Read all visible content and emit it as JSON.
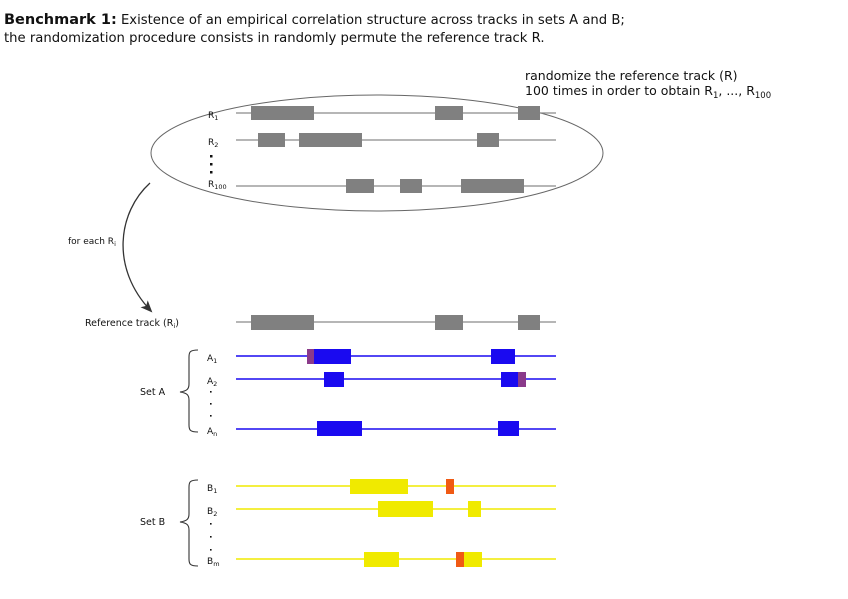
{
  "title": {
    "prefix": "Benchmark 1:",
    "line1": " Existence of an empirical correlation structure across tracks in sets A and B;",
    "line2": "the randomization procedure consists in randomly permute the reference track R."
  },
  "note": {
    "line1": "randomize the reference track (R)",
    "line2_prefix": "100 times in order to obtain R",
    "line2_sub1": "1",
    "line2_mid": ", ..., R",
    "line2_sub2": "100"
  },
  "randomized_tracks": [
    {
      "label": "R",
      "sub": "1"
    },
    {
      "label": "R",
      "sub": "2"
    },
    {
      "label": "R",
      "sub": "100"
    }
  ],
  "for_each": {
    "text": "for each R",
    "sub": "i"
  },
  "reference": {
    "text": "Reference track (R",
    "sub": "i",
    "close": ")"
  },
  "set_a": {
    "name": "Set A",
    "tracks": [
      {
        "label": "A",
        "sub": "1"
      },
      {
        "label": "A",
        "sub": "2"
      },
      {
        "label": "A",
        "sub": "n"
      }
    ]
  },
  "set_b": {
    "name": "Set B",
    "tracks": [
      {
        "label": "B",
        "sub": "1"
      },
      {
        "label": "B",
        "sub": "2"
      },
      {
        "label": "B",
        "sub": "m"
      }
    ]
  },
  "colors": {
    "reference_gray": "#808080",
    "set_a_blue": "#1a0af0",
    "set_a_overlap_purple": "#8a3a8a",
    "set_b_yellow": "#f0ea00",
    "set_b_overlap_orange": "#f05a14",
    "line_gray": "#8a8a8a"
  }
}
